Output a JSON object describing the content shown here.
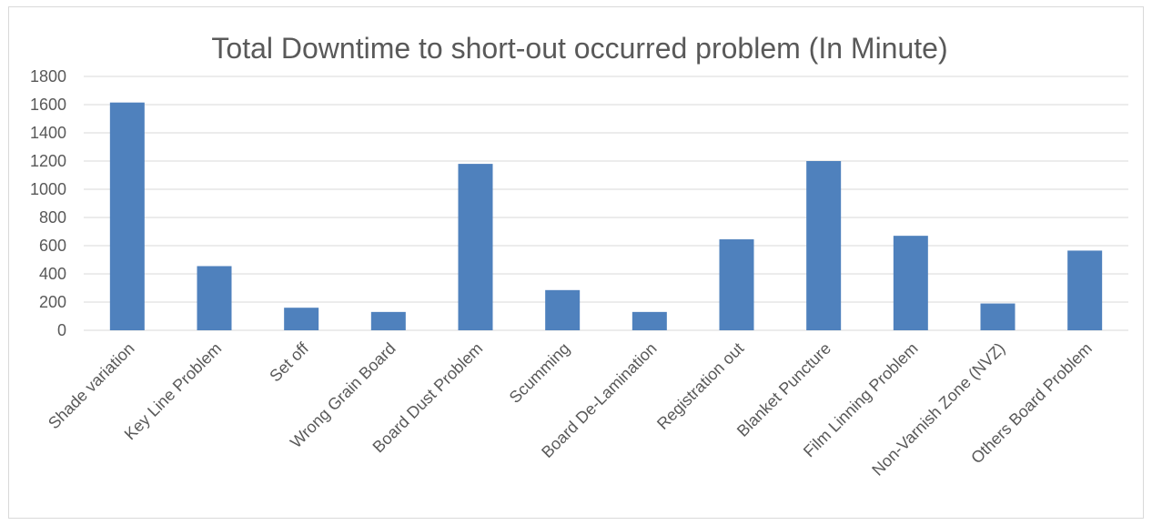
{
  "chart_data": {
    "type": "bar",
    "title": "Total Downtime to short-out occurred problem (In Minute)",
    "xlabel": "",
    "ylabel": "",
    "categories": [
      "Shade variation",
      "Key Line Problem",
      "Set off",
      "Wrong Grain Board",
      "Board Dust Problem",
      "Scumming",
      "Board De-Lamination",
      "Registration out",
      "Blanket Puncture",
      "Film Linning Problem",
      "Non-Varnish Zone (NVZ)",
      "Others Board Problem"
    ],
    "values": [
      1615,
      455,
      160,
      130,
      1180,
      285,
      130,
      645,
      1200,
      670,
      190,
      565
    ],
    "ylim": [
      0,
      1800
    ],
    "yticks": [
      0,
      200,
      400,
      600,
      800,
      1000,
      1200,
      1400,
      1600,
      1800
    ],
    "grid": true,
    "legend": "none",
    "bar_color": "#4f81bd",
    "grid_color": "#d9d9d9",
    "text_color": "#595959"
  }
}
